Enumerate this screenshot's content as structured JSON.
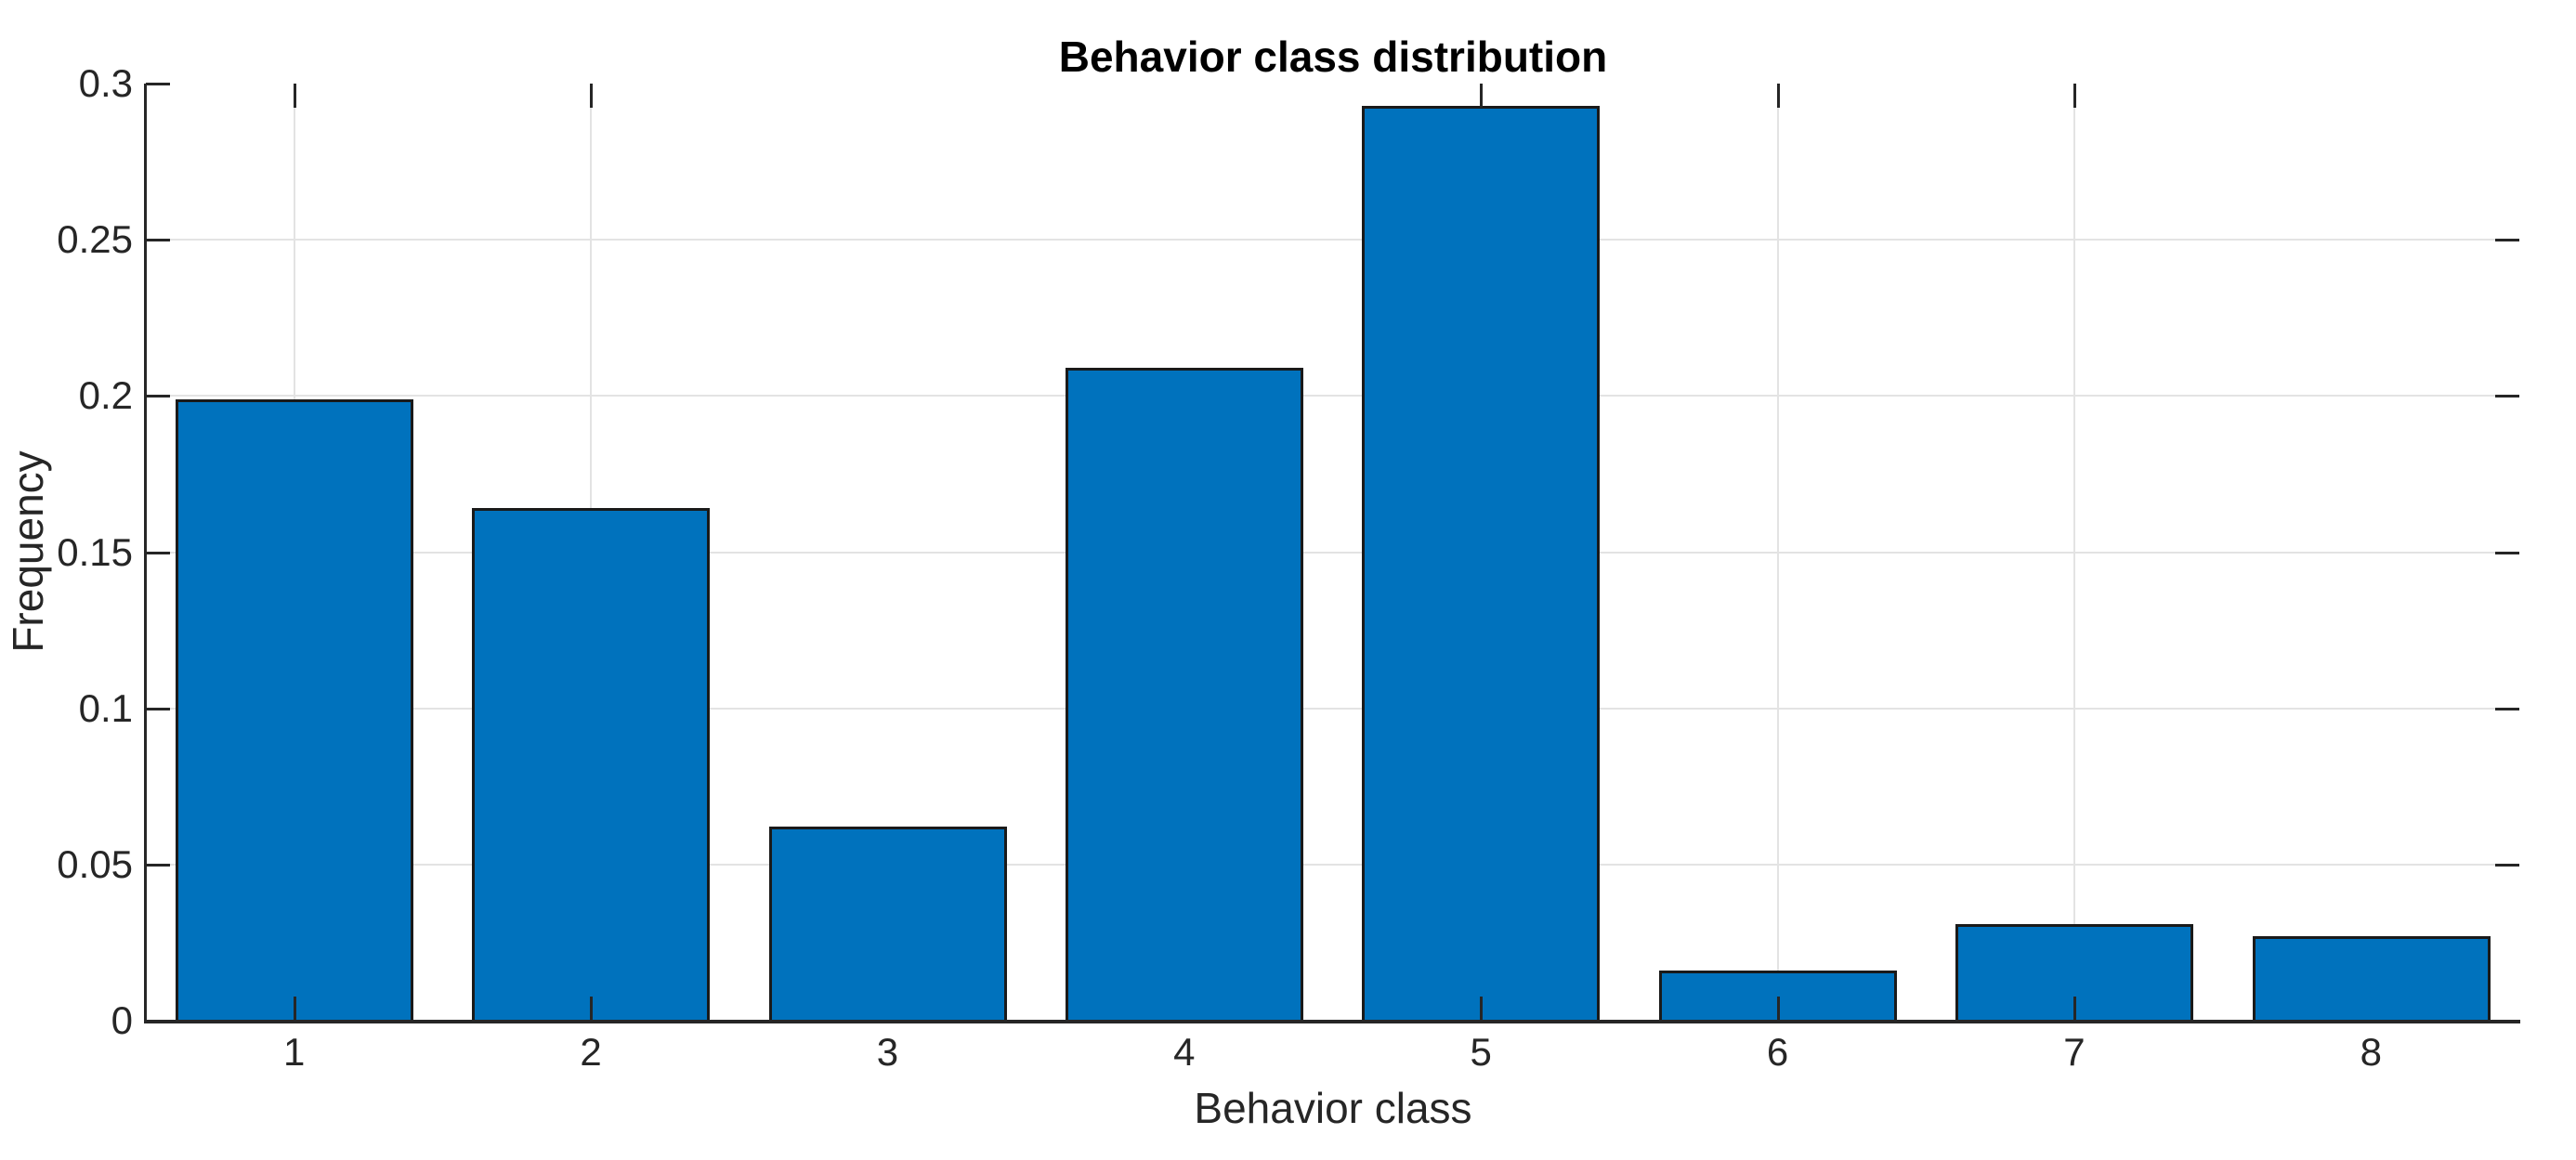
{
  "chart_data": {
    "type": "bar",
    "title": "Behavior class distribution",
    "xlabel": "Behavior class",
    "ylabel": "Frequency",
    "categories": [
      "1",
      "2",
      "3",
      "4",
      "5",
      "6",
      "7",
      "8"
    ],
    "values": [
      0.199,
      0.164,
      0.062,
      0.209,
      0.293,
      0.016,
      0.031,
      0.027
    ],
    "ylim": [
      0,
      0.3
    ],
    "yticks": [
      0,
      0.05,
      0.1,
      0.15,
      0.2,
      0.25,
      0.3
    ],
    "ytick_labels": [
      "0",
      "0.05",
      "0.1",
      "0.15",
      "0.2",
      "0.25",
      "0.3"
    ],
    "bar_width_fraction": 0.8,
    "grid": "on",
    "legend": "none",
    "grid_x_visible_categories": [
      "1",
      "2",
      "5",
      "6",
      "7"
    ],
    "tick_direction": "in",
    "colors": {
      "bar_fill": "#0072BD",
      "bar_edge": "#1a1a1a",
      "grid": "#e3e3e3",
      "axis": "#262626",
      "tick_label": "#262626",
      "axis_label": "#262626",
      "title": "#000000",
      "background": "#ffffff"
    }
  }
}
